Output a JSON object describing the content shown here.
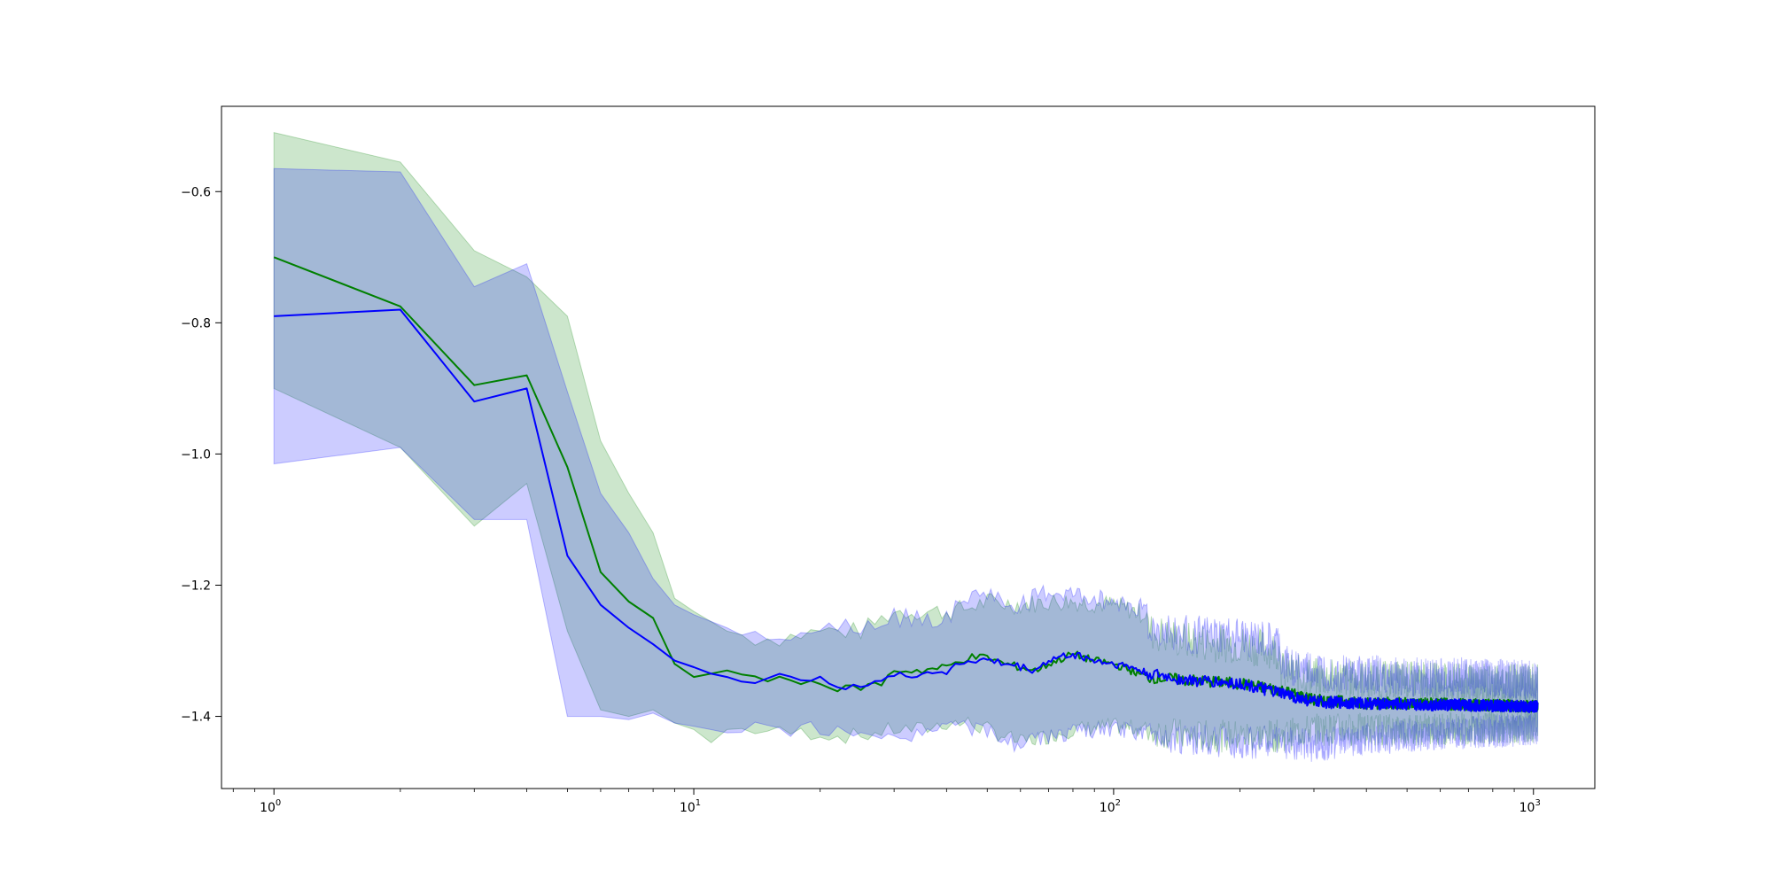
{
  "chart_data": {
    "type": "line",
    "title": "",
    "xlabel": "",
    "ylabel": "",
    "xscale": "log",
    "xlim": [
      0.75,
      1400
    ],
    "ylim": [
      -1.51,
      -0.47
    ],
    "grid": false,
    "x_ticks": [
      {
        "value": 1,
        "base": "10",
        "exp": "0"
      },
      {
        "value": 10,
        "base": "10",
        "exp": "1"
      },
      {
        "value": 100,
        "base": "10",
        "exp": "2"
      },
      {
        "value": 1000,
        "base": "10",
        "exp": "3"
      }
    ],
    "y_ticks": [
      {
        "value": -0.6,
        "label": "−0.6"
      },
      {
        "value": -0.8,
        "label": "−0.8"
      },
      {
        "value": -1.0,
        "label": "−1.0"
      },
      {
        "value": -1.2,
        "label": "−1.2"
      },
      {
        "value": -1.4,
        "label": "−1.4"
      }
    ],
    "series": [
      {
        "color": "#008000",
        "band_color": "#008000",
        "band_opacity": 0.2,
        "mean": [
          [
            1,
            -0.7
          ],
          [
            2,
            -0.775
          ],
          [
            3,
            -0.895
          ],
          [
            4,
            -0.88
          ],
          [
            5,
            -1.02
          ],
          [
            6,
            -1.18
          ],
          [
            7,
            -1.225
          ],
          [
            8,
            -1.25
          ],
          [
            9,
            -1.32
          ],
          [
            10,
            -1.34
          ],
          [
            12,
            -1.33
          ],
          [
            14,
            -1.345
          ],
          [
            16,
            -1.34
          ],
          [
            18,
            -1.35
          ],
          [
            20,
            -1.345
          ],
          [
            22,
            -1.36
          ],
          [
            25,
            -1.355
          ],
          [
            28,
            -1.35
          ],
          [
            30,
            -1.33
          ],
          [
            35,
            -1.33
          ],
          [
            40,
            -1.325
          ],
          [
            45,
            -1.31
          ],
          [
            50,
            -1.31
          ],
          [
            55,
            -1.32
          ],
          [
            60,
            -1.325
          ],
          [
            65,
            -1.33
          ],
          [
            70,
            -1.32
          ],
          [
            80,
            -1.305
          ],
          [
            90,
            -1.315
          ],
          [
            100,
            -1.32
          ],
          [
            110,
            -1.33
          ],
          [
            120,
            -1.34
          ],
          [
            150,
            -1.345
          ],
          [
            200,
            -1.35
          ],
          [
            250,
            -1.36
          ],
          [
            300,
            -1.375
          ],
          [
            400,
            -1.38
          ],
          [
            500,
            -1.38
          ],
          [
            700,
            -1.382
          ],
          [
            1024,
            -1.385
          ]
        ],
        "upper": [
          [
            1,
            -0.51
          ],
          [
            2,
            -0.555
          ],
          [
            3,
            -0.69
          ],
          [
            4,
            -0.73
          ],
          [
            5,
            -0.79
          ],
          [
            6,
            -0.98
          ],
          [
            7,
            -1.06
          ],
          [
            8,
            -1.12
          ],
          [
            9,
            -1.22
          ],
          [
            10,
            -1.24
          ],
          [
            12,
            -1.27
          ],
          [
            14,
            -1.28
          ],
          [
            16,
            -1.28
          ],
          [
            18,
            -1.275
          ],
          [
            20,
            -1.27
          ],
          [
            22,
            -1.27
          ],
          [
            25,
            -1.27
          ],
          [
            30,
            -1.24
          ],
          [
            35,
            -1.24
          ],
          [
            40,
            -1.24
          ],
          [
            45,
            -1.235
          ],
          [
            50,
            -1.225
          ],
          [
            60,
            -1.23
          ],
          [
            70,
            -1.225
          ],
          [
            80,
            -1.225
          ],
          [
            100,
            -1.23
          ],
          [
            120,
            -1.245
          ],
          [
            121,
            -1.27
          ],
          [
            150,
            -1.285
          ],
          [
            200,
            -1.29
          ],
          [
            250,
            -1.3
          ],
          [
            251,
            -1.33
          ],
          [
            300,
            -1.34
          ],
          [
            400,
            -1.345
          ],
          [
            500,
            -1.345
          ],
          [
            700,
            -1.35
          ],
          [
            1024,
            -1.35
          ]
        ],
        "lower": [
          [
            1,
            -0.9
          ],
          [
            2,
            -0.99
          ],
          [
            3,
            -1.11
          ],
          [
            4,
            -1.045
          ],
          [
            5,
            -1.27
          ],
          [
            6,
            -1.39
          ],
          [
            7,
            -1.4
          ],
          [
            8,
            -1.39
          ],
          [
            9,
            -1.41
          ],
          [
            10,
            -1.42
          ],
          [
            11,
            -1.44
          ],
          [
            12,
            -1.42
          ],
          [
            14,
            -1.42
          ],
          [
            16,
            -1.425
          ],
          [
            18,
            -1.425
          ],
          [
            20,
            -1.425
          ],
          [
            22,
            -1.43
          ],
          [
            25,
            -1.43
          ],
          [
            30,
            -1.42
          ],
          [
            35,
            -1.42
          ],
          [
            40,
            -1.41
          ],
          [
            45,
            -1.41
          ],
          [
            50,
            -1.42
          ],
          [
            55,
            -1.43
          ],
          [
            60,
            -1.44
          ],
          [
            70,
            -1.43
          ],
          [
            80,
            -1.42
          ],
          [
            100,
            -1.415
          ],
          [
            120,
            -1.42
          ],
          [
            150,
            -1.43
          ],
          [
            200,
            -1.43
          ],
          [
            250,
            -1.43
          ],
          [
            300,
            -1.42
          ],
          [
            400,
            -1.42
          ],
          [
            500,
            -1.42
          ],
          [
            700,
            -1.418
          ],
          [
            1024,
            -1.415
          ]
        ]
      },
      {
        "color": "#0000ff",
        "band_color": "#0000ff",
        "band_opacity": 0.2,
        "mean": [
          [
            1,
            -0.79
          ],
          [
            2,
            -0.78
          ],
          [
            3,
            -0.92
          ],
          [
            4,
            -0.9
          ],
          [
            5,
            -1.155
          ],
          [
            6,
            -1.23
          ],
          [
            7,
            -1.265
          ],
          [
            8,
            -1.29
          ],
          [
            9,
            -1.315
          ],
          [
            10,
            -1.325
          ],
          [
            11,
            -1.335
          ],
          [
            12,
            -1.34
          ],
          [
            14,
            -1.345
          ],
          [
            16,
            -1.34
          ],
          [
            18,
            -1.35
          ],
          [
            20,
            -1.335
          ],
          [
            22,
            -1.355
          ],
          [
            25,
            -1.35
          ],
          [
            28,
            -1.345
          ],
          [
            30,
            -1.34
          ],
          [
            35,
            -1.335
          ],
          [
            40,
            -1.33
          ],
          [
            45,
            -1.315
          ],
          [
            50,
            -1.315
          ],
          [
            55,
            -1.32
          ],
          [
            60,
            -1.325
          ],
          [
            65,
            -1.33
          ],
          [
            70,
            -1.315
          ],
          [
            80,
            -1.305
          ],
          [
            90,
            -1.315
          ],
          [
            100,
            -1.32
          ],
          [
            110,
            -1.325
          ],
          [
            120,
            -1.335
          ],
          [
            150,
            -1.345
          ],
          [
            200,
            -1.35
          ],
          [
            250,
            -1.365
          ],
          [
            300,
            -1.378
          ],
          [
            400,
            -1.38
          ],
          [
            500,
            -1.382
          ],
          [
            700,
            -1.383
          ],
          [
            1024,
            -1.385
          ]
        ],
        "upper": [
          [
            1,
            -0.565
          ],
          [
            2,
            -0.57
          ],
          [
            3,
            -0.745
          ],
          [
            4,
            -0.71
          ],
          [
            5,
            -0.905
          ],
          [
            6,
            -1.06
          ],
          [
            7,
            -1.12
          ],
          [
            8,
            -1.19
          ],
          [
            9,
            -1.23
          ],
          [
            10,
            -1.245
          ],
          [
            12,
            -1.265
          ],
          [
            14,
            -1.27
          ],
          [
            16,
            -1.27
          ],
          [
            18,
            -1.27
          ],
          [
            20,
            -1.265
          ],
          [
            22,
            -1.26
          ],
          [
            25,
            -1.26
          ],
          [
            30,
            -1.25
          ],
          [
            35,
            -1.25
          ],
          [
            40,
            -1.25
          ],
          [
            45,
            -1.22
          ],
          [
            50,
            -1.21
          ],
          [
            55,
            -1.23
          ],
          [
            60,
            -1.23
          ],
          [
            70,
            -1.21
          ],
          [
            80,
            -1.215
          ],
          [
            90,
            -1.22
          ],
          [
            100,
            -1.225
          ],
          [
            120,
            -1.235
          ],
          [
            121,
            -1.265
          ],
          [
            150,
            -1.275
          ],
          [
            200,
            -1.28
          ],
          [
            250,
            -1.29
          ],
          [
            251,
            -1.32
          ],
          [
            300,
            -1.33
          ],
          [
            400,
            -1.335
          ],
          [
            500,
            -1.34
          ],
          [
            700,
            -1.34
          ],
          [
            1024,
            -1.345
          ]
        ],
        "lower": [
          [
            1,
            -1.015
          ],
          [
            2,
            -0.99
          ],
          [
            3,
            -1.1
          ],
          [
            4,
            -1.1
          ],
          [
            5,
            -1.4
          ],
          [
            6,
            -1.4
          ],
          [
            7,
            -1.405
          ],
          [
            8,
            -1.395
          ],
          [
            9,
            -1.41
          ],
          [
            10,
            -1.415
          ],
          [
            12,
            -1.425
          ],
          [
            14,
            -1.42
          ],
          [
            16,
            -1.42
          ],
          [
            18,
            -1.42
          ],
          [
            20,
            -1.42
          ],
          [
            22,
            -1.425
          ],
          [
            25,
            -1.43
          ],
          [
            28,
            -1.44
          ],
          [
            30,
            -1.43
          ],
          [
            35,
            -1.425
          ],
          [
            40,
            -1.415
          ],
          [
            45,
            -1.415
          ],
          [
            50,
            -1.425
          ],
          [
            55,
            -1.435
          ],
          [
            60,
            -1.445
          ],
          [
            65,
            -1.435
          ],
          [
            70,
            -1.43
          ],
          [
            80,
            -1.425
          ],
          [
            100,
            -1.42
          ],
          [
            120,
            -1.425
          ],
          [
            150,
            -1.435
          ],
          [
            200,
            -1.44
          ],
          [
            250,
            -1.44
          ],
          [
            300,
            -1.445
          ],
          [
            400,
            -1.435
          ],
          [
            500,
            -1.43
          ],
          [
            700,
            -1.425
          ],
          [
            1024,
            -1.42
          ]
        ]
      }
    ]
  }
}
